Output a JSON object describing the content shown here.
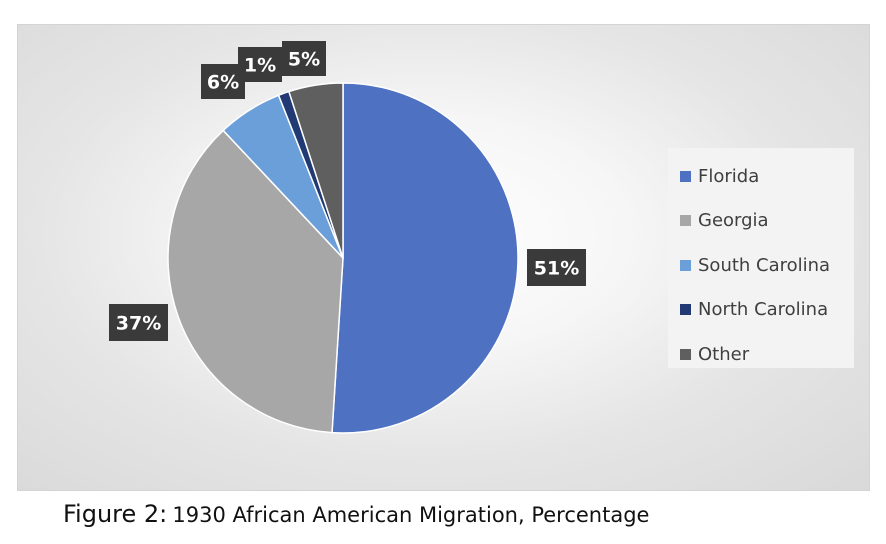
{
  "chart_data": {
    "type": "pie",
    "categories": [
      "Florida",
      "Georgia",
      "South Carolina",
      "North Carolina",
      "Other"
    ],
    "values": [
      51,
      37,
      6,
      1,
      5
    ],
    "data_labels": [
      "51%",
      "37%",
      "6%",
      "1%",
      "5%"
    ],
    "colors": [
      "#4e71c2",
      "#a7a7a7",
      "#6a9fda",
      "#213a73",
      "#5f5f5f"
    ],
    "legend_position": "right"
  },
  "caption": {
    "prefix": "Figure 2:",
    "text": "1930 African American Migration, Percentage"
  }
}
